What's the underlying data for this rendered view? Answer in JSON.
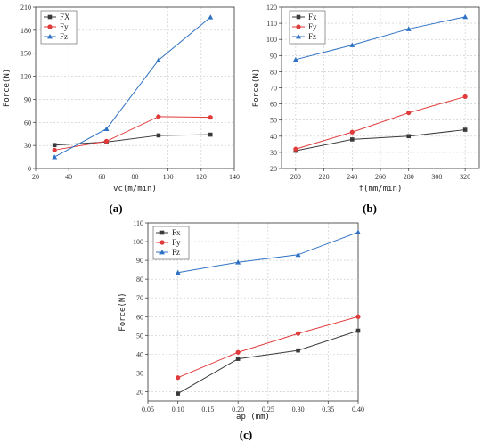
{
  "figure": {
    "series_colors": {
      "Fx": "#3a3a3a",
      "Fy": "#e03a3a",
      "Fz": "#2f72c4"
    },
    "series_markers": {
      "Fx": "square",
      "Fy": "circle",
      "Fz": "triangle"
    }
  },
  "chart_data": [
    {
      "panel_label": "(a)",
      "type": "line",
      "xlabel": "vc(m/min)",
      "ylabel": "Force(N)",
      "xlim": [
        20,
        140
      ],
      "ylim": [
        0,
        210
      ],
      "xticks": [
        20,
        40,
        60,
        80,
        100,
        120,
        140
      ],
      "yticks": [
        0,
        30,
        60,
        90,
        120,
        150,
        180,
        210
      ],
      "grid": true,
      "legend_position": "top-left",
      "series": [
        {
          "name": "FX",
          "key": "Fx",
          "x": [
            31.4,
            62.8,
            94.2,
            125.6
          ],
          "y": [
            30.5,
            34.5,
            43,
            44
          ]
        },
        {
          "name": "Fy",
          "key": "Fy",
          "x": [
            31.4,
            62.8,
            94.2,
            125.6
          ],
          "y": [
            24,
            35.5,
            67.5,
            66.5
          ]
        },
        {
          "name": "Fz",
          "key": "Fz",
          "x": [
            31.4,
            62.8,
            94.2,
            125.6
          ],
          "y": [
            15,
            51.5,
            141,
            197
          ]
        }
      ]
    },
    {
      "panel_label": "(b)",
      "type": "line",
      "xlabel": "f(mm/min)",
      "ylabel": "Force(N)",
      "xlim": [
        190,
        330
      ],
      "ylim": [
        20,
        120
      ],
      "xticks": [
        200,
        220,
        240,
        260,
        280,
        300,
        320
      ],
      "yticks": [
        20,
        30,
        40,
        50,
        60,
        70,
        80,
        90,
        100,
        110,
        120
      ],
      "grid": true,
      "legend_position": "top-left",
      "series": [
        {
          "name": "Fx",
          "key": "Fx",
          "x": [
            200,
            240,
            280,
            320
          ],
          "y": [
            31,
            38,
            40,
            44
          ]
        },
        {
          "name": "Fy",
          "key": "Fy",
          "x": [
            200,
            240,
            280,
            320
          ],
          "y": [
            32,
            42.5,
            54.5,
            64.5
          ]
        },
        {
          "name": "Fz",
          "key": "Fz",
          "x": [
            200,
            240,
            280,
            320
          ],
          "y": [
            87.5,
            96.5,
            106.5,
            114
          ]
        }
      ]
    },
    {
      "panel_label": "(c)",
      "type": "line",
      "xlabel": "ap (mm)",
      "ylabel": "Force(N)",
      "xlim": [
        0.05,
        0.4
      ],
      "ylim": [
        15,
        110
      ],
      "xticks": [
        0.05,
        0.1,
        0.15,
        0.2,
        0.25,
        0.3,
        0.35,
        0.4
      ],
      "yticks": [
        20,
        30,
        40,
        50,
        60,
        70,
        80,
        90,
        100,
        110
      ],
      "grid": true,
      "legend_position": "top-left",
      "series": [
        {
          "name": "Fx",
          "key": "Fx",
          "x": [
            0.1,
            0.2,
            0.3,
            0.4
          ],
          "y": [
            19,
            37.5,
            42,
            52.5
          ]
        },
        {
          "name": "Fy",
          "key": "Fy",
          "x": [
            0.1,
            0.2,
            0.3,
            0.4
          ],
          "y": [
            27.5,
            41,
            51,
            60
          ]
        },
        {
          "name": "Fz",
          "key": "Fz",
          "x": [
            0.1,
            0.2,
            0.3,
            0.4
          ],
          "y": [
            83.5,
            89,
            93,
            105
          ]
        }
      ]
    }
  ]
}
